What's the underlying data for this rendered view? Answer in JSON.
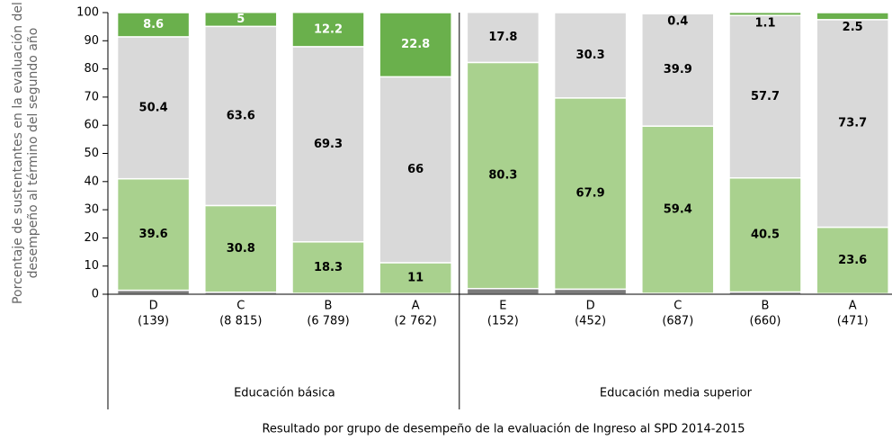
{
  "chart_data": {
    "type": "stacked_bar",
    "y_label": [
      "Porcentaje de sustentantes en la evaluación del",
      "desempeño al término del segundo año"
    ],
    "x_label": "Resultado por grupo de desempeño de la evaluación de Ingreso al SPD 2014-2015",
    "categories": [
      "D",
      "C",
      "B",
      "A",
      "E",
      "D",
      "C",
      "B",
      "A"
    ],
    "category_counts": [
      "(139)",
      "(8 815)",
      "(6 789)",
      "(2 762)",
      "(152)",
      "(452)",
      "(687)",
      "(660)",
      "(471)"
    ],
    "group_labels": [
      "Educación básica",
      "Educación media superior"
    ],
    "group_sizes": [
      4,
      5
    ],
    "series": [
      {
        "color": "#7b7b7b",
        "label_color": "#000000",
        "values": [
          1.4,
          0.7,
          0.3,
          0.2,
          2,
          1.8,
          0.3,
          0.8,
          0.2
        ],
        "value_labels": [
          "1.4",
          "0.7%",
          "0.3",
          "0.2",
          "2",
          "1.8",
          "0.3",
          "0.8",
          "0.2"
        ]
      },
      {
        "color": "#a9d18e",
        "label_color": "#000000",
        "values": [
          39.6,
          30.8,
          18.3,
          11,
          80.3,
          67.9,
          59.4,
          40.5,
          23.6
        ]
      },
      {
        "color": "#d9d9d9",
        "label_color": "#000000",
        "values": [
          50.4,
          63.6,
          69.3,
          66,
          17.8,
          30.3,
          39.9,
          57.7,
          73.7
        ]
      },
      {
        "color": "#6ab04c",
        "label_color": "#ffffff",
        "values": [
          8.6,
          5,
          12.2,
          22.8,
          null,
          null,
          0.4,
          1.1,
          2.5
        ]
      }
    ],
    "ylim": [
      0,
      100
    ],
    "yticks": [
      0,
      10,
      20,
      30,
      40,
      50,
      60,
      70,
      80,
      90,
      100
    ]
  }
}
